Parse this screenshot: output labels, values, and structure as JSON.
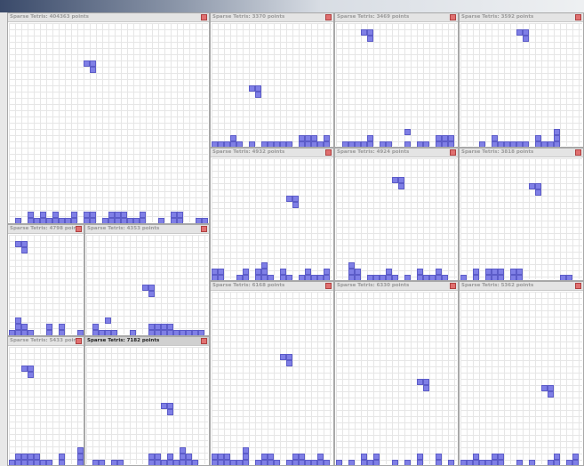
{
  "windows": [
    {
      "title": "Sparse Tetris: 404363 points"
    },
    {
      "title": "Sparse Tetris: 3370 points"
    },
    {
      "title": "Sparse Tetris: 3469 points"
    },
    {
      "title": "Sparse Tetris: 3592 points"
    },
    {
      "title": "Sparse Tetris: 4932 points"
    },
    {
      "title": "Sparse Tetris: 4924 points"
    },
    {
      "title": "Sparse Tetris: 3818 points"
    },
    {
      "title": "Sparse Tetris: 4798 points"
    },
    {
      "title": "Sparse Tetris: 4353 points"
    },
    {
      "title": "Sparse Tetris: 6168 points"
    },
    {
      "title": "Sparse Tetris: 6330 points"
    },
    {
      "title": "Sparse Tetris: 5362 points"
    },
    {
      "title": "Sparse Tetris: 5433 points"
    },
    {
      "title": "Sparse Tetris: 7182 points",
      "active": true
    }
  ]
}
